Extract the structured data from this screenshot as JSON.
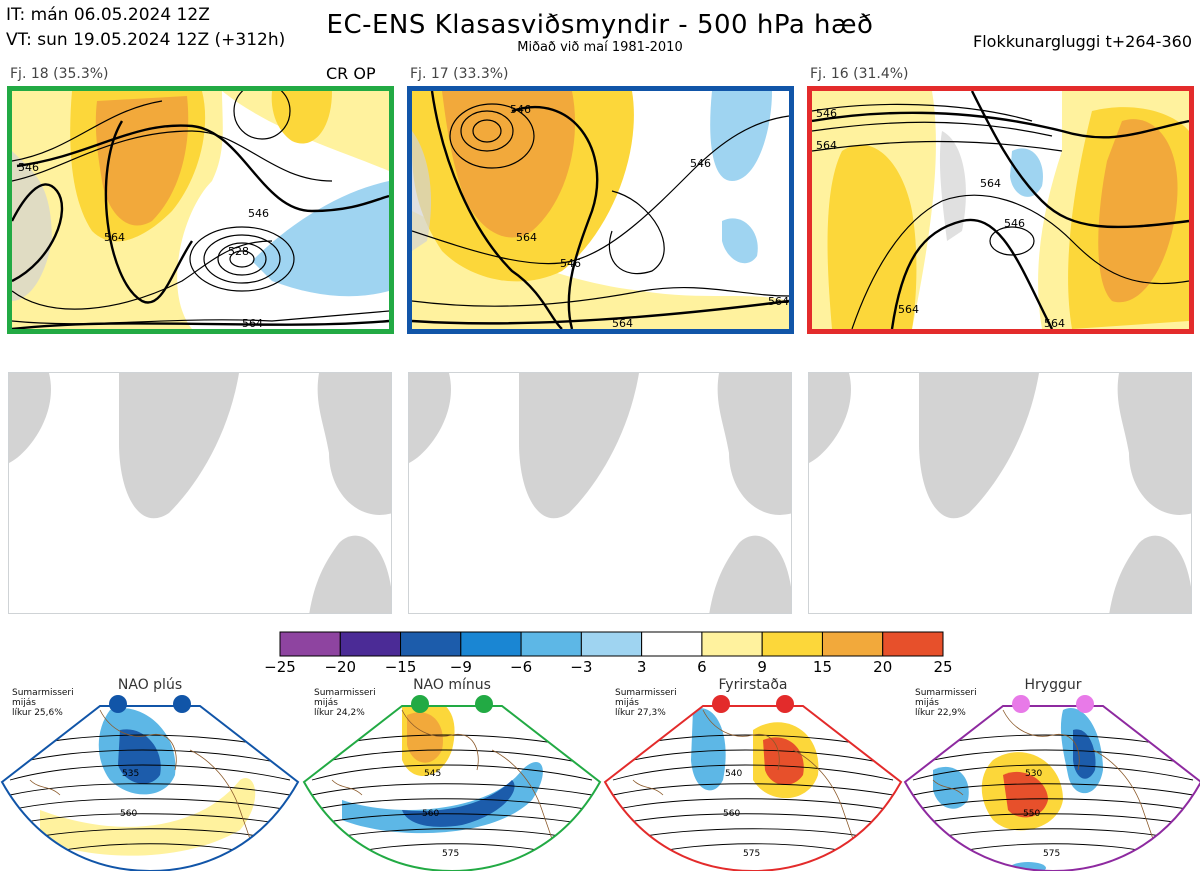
{
  "header": {
    "it_line": "IT: mán 06.05.2024 12Z",
    "vt_line": "VT: sun 19.05.2024 12Z  (+312h)",
    "title": "EC-ENS Klasasviðsmyndir - 500 hPa hæð",
    "subtitle": "Miðað við maí 1981-2010",
    "window": "Flokkunargluggi t+264-360"
  },
  "clusters": [
    {
      "label": "Fj. 18 (35.3%)",
      "tag": "CR OP",
      "frame_color": "#22aa44",
      "percent": 35.3,
      "contours": [
        "546",
        "564",
        "528",
        "546",
        "564"
      ]
    },
    {
      "label": "Fj. 17 (33.3%)",
      "tag": "",
      "frame_color": "#1155a8",
      "percent": 33.3,
      "contours": [
        "546",
        "546",
        "564",
        "546",
        "564",
        "564"
      ]
    },
    {
      "label": "Fj. 16 (31.4%)",
      "tag": "",
      "frame_color": "#e32b2b",
      "percent": 31.4,
      "contours": [
        "546",
        "564",
        "564",
        "546",
        "564",
        "564"
      ]
    }
  ],
  "colorbar": {
    "ticks": [
      "−25",
      "−20",
      "−15",
      "−9",
      "−6",
      "−3",
      "3",
      "6",
      "9",
      "15",
      "20",
      "25"
    ],
    "colors": [
      "#8e44a0",
      "#4b2b96",
      "#1c5cab",
      "#1a86d3",
      "#5db7e6",
      "#9fd4f1",
      "#ffffff",
      "#fff29e",
      "#fcd73a",
      "#f2a93b",
      "#e7502b",
      "#c01c1c",
      "#a30f14"
    ],
    "bins": [
      -25,
      -20,
      -15,
      -9,
      -6,
      -3,
      3,
      6,
      9,
      15,
      20,
      25
    ]
  },
  "regimes": [
    {
      "name": "NAO plús",
      "season": "Sumarmisseri",
      "mean": "mijás",
      "likelihood": "líkur 25,6%",
      "frame_color": "#1155a8",
      "dot_color": "#1155a8",
      "contours": [
        "535",
        "560"
      ]
    },
    {
      "name": "NAO mínus",
      "season": "Sumarmisseri",
      "mean": "mijás",
      "likelihood": "líkur 24,2%",
      "frame_color": "#22aa44",
      "dot_color": "#22aa44",
      "contours": [
        "545",
        "560",
        "575"
      ]
    },
    {
      "name": "Fyrirstaða",
      "season": "Sumarmisseri",
      "mean": "mijás",
      "likelihood": "líkur 27,3%",
      "frame_color": "#e32b2b",
      "dot_color": "#e32b2b",
      "contours": [
        "540",
        "560",
        "575"
      ]
    },
    {
      "name": "Hryggur",
      "season": "Sumarmisseri",
      "mean": "mijás",
      "likelihood": "líkur 22,9%",
      "frame_color": "#8e2aa0",
      "dot_color": "#e87ae8",
      "contours": [
        "530",
        "550",
        "575"
      ]
    }
  ],
  "colors": {
    "land": "#d3d3d3",
    "coast": "#8b5a2b",
    "contour": "#000000"
  }
}
